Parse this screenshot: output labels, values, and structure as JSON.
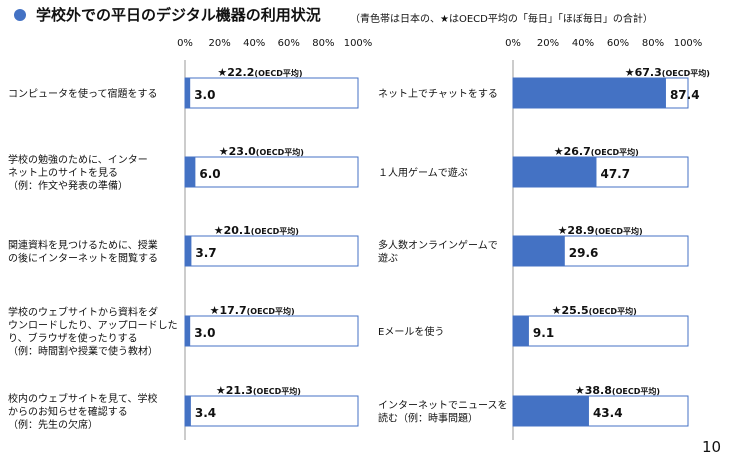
{
  "header": {
    "title": "学校外での平日のデジタル機器の利用状況",
    "subtitle": "（青色帯は日本の、★はOECD平均の「毎日」「ほぼ毎日」の合計）"
  },
  "page_number": "10",
  "colors": {
    "bar": "#4472c4",
    "frame": "#4472c4",
    "axis": "#999999"
  },
  "chart_data": [
    {
      "type": "bar",
      "orientation": "horizontal",
      "xlim": [
        0,
        100
      ],
      "ticks": [
        "0%",
        "20%",
        "40%",
        "60%",
        "80%",
        "100%"
      ],
      "tick_values": [
        0,
        20,
        40,
        60,
        80,
        100
      ],
      "categories": [
        [
          "コンピュータを使って宿題をする"
        ],
        [
          "学校の勉強のために、インター",
          "ネット上のサイトを見る",
          "（例：作文や発表の準備）"
        ],
        [
          "関連資料を見つけるために、授業",
          "の後にインターネットを閲覧する"
        ],
        [
          "学校のウェブサイトから資料をダ",
          "ウンロードしたり、アップロードした",
          "り、ブラウザを使ったりする",
          "（例：時間割や授業で使う教材）"
        ],
        [
          "校内のウェブサイトを見て、学校",
          "からのお知らせを確認する",
          "（例：先生の欠席）"
        ]
      ],
      "values": [
        3.0,
        6.0,
        3.7,
        3.0,
        3.4
      ],
      "value_labels": [
        "3.0",
        "6.0",
        "3.7",
        "3.0",
        "3.4"
      ],
      "oecd_values": [
        22.2,
        23.0,
        20.1,
        17.7,
        21.3
      ],
      "oecd_labels": [
        "★22.2",
        "★23.0",
        "★20.1",
        "★17.7",
        "★21.3"
      ],
      "oecd_suffix": "(OECD平均)"
    },
    {
      "type": "bar",
      "orientation": "horizontal",
      "xlim": [
        0,
        100
      ],
      "ticks": [
        "0%",
        "20%",
        "40%",
        "60%",
        "80%",
        "100%"
      ],
      "tick_values": [
        0,
        20,
        40,
        60,
        80,
        100
      ],
      "categories": [
        [
          "ネット上でチャットをする"
        ],
        [
          "１人用ゲームで遊ぶ"
        ],
        [
          "多人数オンラインゲームで",
          "遊ぶ"
        ],
        [
          "Eメールを使う"
        ],
        [
          "インターネットでニュースを",
          "読む（例：時事問題）"
        ]
      ],
      "values": [
        87.4,
        47.7,
        29.6,
        9.1,
        43.4
      ],
      "value_labels": [
        "87.4",
        "47.7",
        "29.6",
        "9.1",
        "43.4"
      ],
      "oecd_values": [
        67.3,
        26.7,
        28.9,
        25.5,
        38.8
      ],
      "oecd_labels": [
        "★67.3",
        "★26.7",
        "★28.9",
        "★25.5",
        "★38.8"
      ],
      "oecd_suffix": "(OECD平均)"
    }
  ]
}
